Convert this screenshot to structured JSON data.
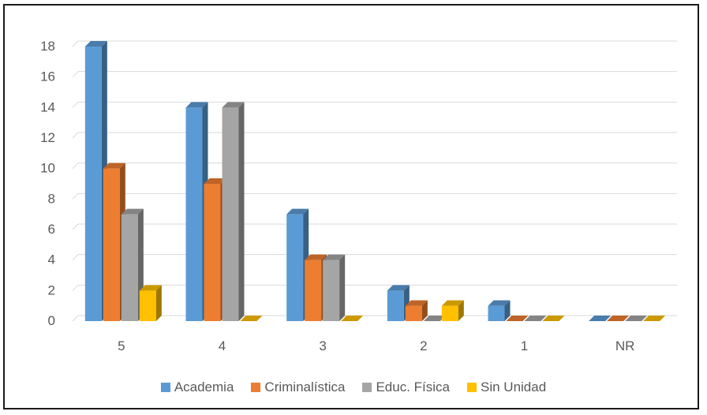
{
  "chart_data": {
    "type": "bar",
    "categories": [
      "5",
      "4",
      "3",
      "2",
      "1",
      "NR"
    ],
    "series": [
      {
        "name": "Academia",
        "values": [
          18,
          14,
          7,
          2,
          1,
          0
        ],
        "color": "#5b9bd5"
      },
      {
        "name": "Criminalística",
        "values": [
          10,
          9,
          4,
          1,
          0,
          0
        ],
        "color": "#ed7d31"
      },
      {
        "name": "Educ. Física",
        "values": [
          7,
          14,
          4,
          0,
          0,
          0
        ],
        "color": "#a5a5a5"
      },
      {
        "name": "Sin Unidad",
        "values": [
          2,
          0,
          0,
          1,
          0,
          0
        ],
        "color": "#ffc000"
      }
    ],
    "ylim": [
      0,
      18
    ],
    "yticks": [
      0,
      2,
      4,
      6,
      8,
      10,
      12,
      14,
      16,
      18
    ],
    "grid": true,
    "legend_position": "bottom",
    "style": "3d-clustered-column"
  }
}
